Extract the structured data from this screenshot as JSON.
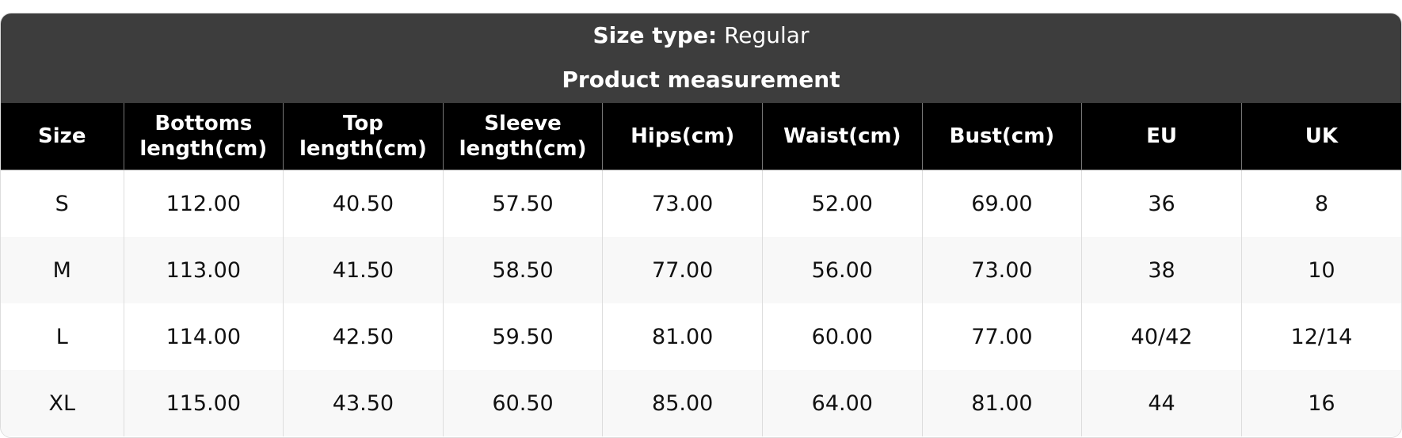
{
  "header": {
    "size_type_label": "Size type:",
    "size_type_value": "Regular",
    "title": "Product measurement"
  },
  "columns": [
    [
      "Size"
    ],
    [
      "Bottoms",
      "length(cm)"
    ],
    [
      "Top",
      "length(cm)"
    ],
    [
      "Sleeve",
      "length(cm)"
    ],
    [
      "Hips(cm)"
    ],
    [
      "Waist(cm)"
    ],
    [
      "Bust(cm)"
    ],
    [
      "EU"
    ],
    [
      "UK"
    ]
  ],
  "rows": [
    [
      "S",
      "112.00",
      "40.50",
      "57.50",
      "73.00",
      "52.00",
      "69.00",
      "36",
      "8"
    ],
    [
      "M",
      "113.00",
      "41.50",
      "58.50",
      "77.00",
      "56.00",
      "73.00",
      "38",
      "10"
    ],
    [
      "L",
      "114.00",
      "42.50",
      "59.50",
      "81.00",
      "60.00",
      "77.00",
      "40/42",
      "12/14"
    ],
    [
      "XL",
      "115.00",
      "43.50",
      "60.50",
      "85.00",
      "64.00",
      "81.00",
      "44",
      "16"
    ]
  ],
  "colors": {
    "title_bg": "#3d3d3d",
    "header_bg": "#000000",
    "alt_row": "#f8f8f8"
  }
}
